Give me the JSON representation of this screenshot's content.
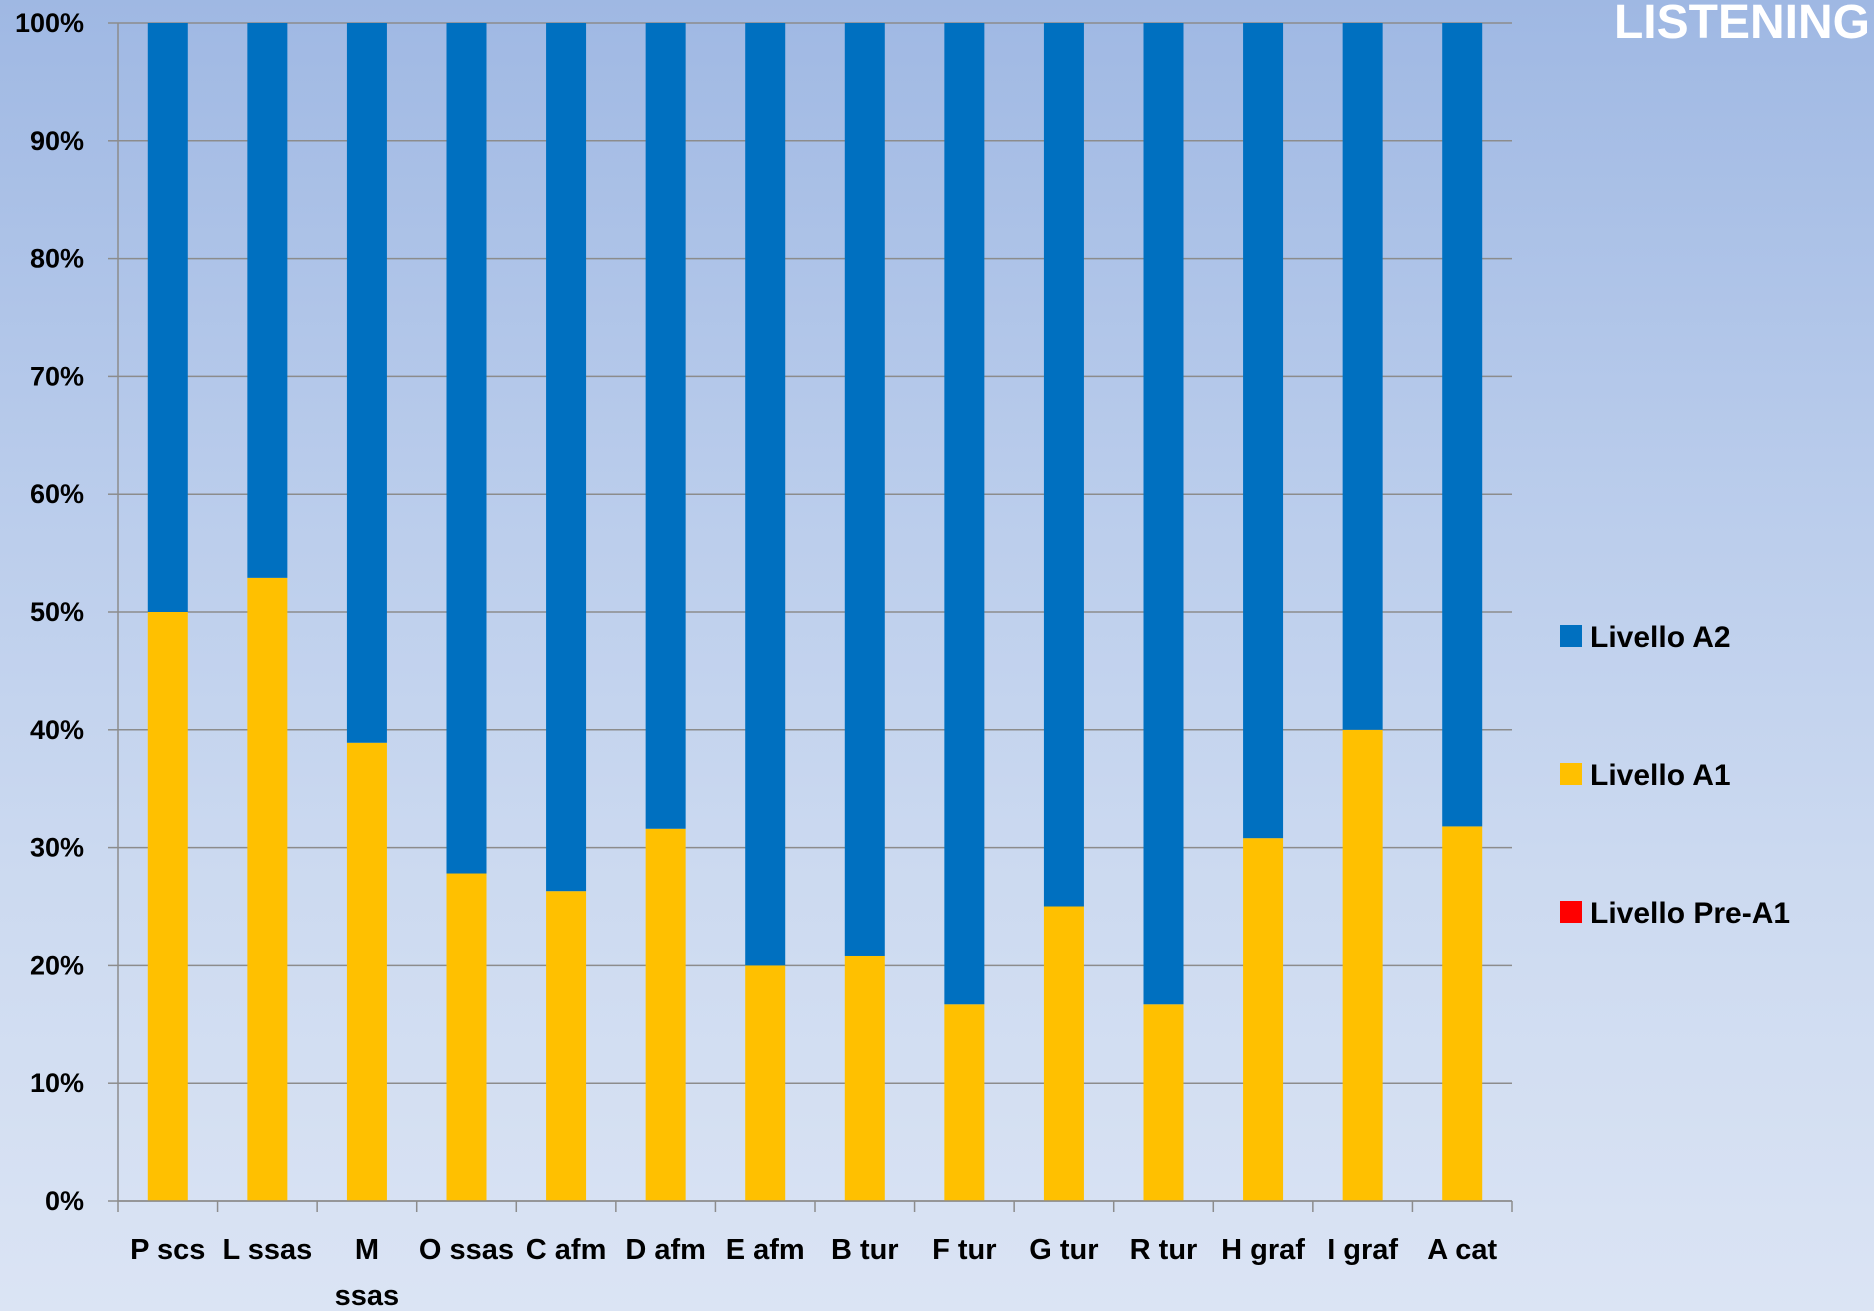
{
  "chart_data": {
    "type": "bar",
    "stacked": true,
    "percent_stacked": true,
    "title": "LISTENING",
    "categories": [
      [
        "P scs"
      ],
      [
        "L  ssas"
      ],
      [
        "M",
        "ssas"
      ],
      [
        "O ssas"
      ],
      [
        "C afm"
      ],
      [
        "D afm"
      ],
      [
        "E afm"
      ],
      [
        "B tur"
      ],
      [
        "F tur"
      ],
      [
        "G tur"
      ],
      [
        "R tur"
      ],
      [
        "H graf"
      ],
      [
        "I graf"
      ],
      [
        "A cat"
      ]
    ],
    "series": [
      {
        "name": "Livello Pre-A1",
        "color": "#ff0000",
        "values": [
          0,
          0,
          0,
          0,
          0,
          0,
          0,
          0,
          0,
          0,
          0,
          0,
          0,
          0
        ]
      },
      {
        "name": "Livello A1",
        "color": "#ffc000",
        "values": [
          50,
          52.9,
          38.9,
          27.8,
          26.3,
          31.6,
          20,
          20.8,
          16.7,
          25,
          16.7,
          30.8,
          40,
          31.8
        ]
      },
      {
        "name": "Livello A2",
        "color": "#0070c0",
        "values": [
          50,
          47.1,
          61.1,
          72.2,
          73.7,
          68.4,
          80,
          79.2,
          83.3,
          75,
          83.3,
          69.2,
          60,
          68.2
        ]
      }
    ],
    "legend_order": [
      "Livello A2",
      "Livello A1",
      "Livello Pre-A1"
    ],
    "y_ticks": [
      "0%",
      "10%",
      "20%",
      "30%",
      "40%",
      "50%",
      "60%",
      "70%",
      "80%",
      "90%",
      "100%"
    ],
    "ylim": [
      0,
      100
    ],
    "grid": true,
    "legend_position": "right"
  }
}
